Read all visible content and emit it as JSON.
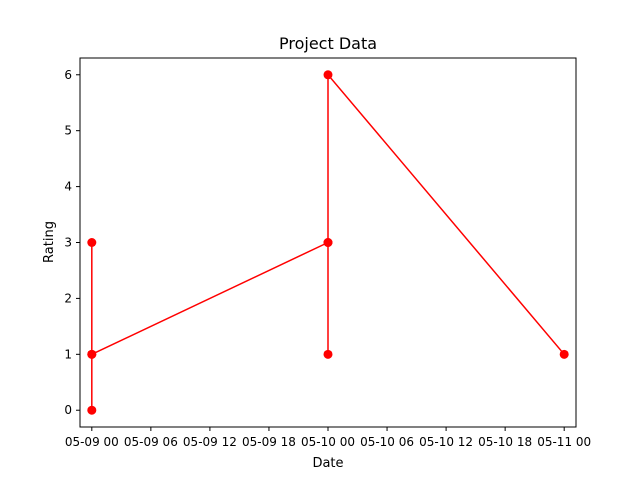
{
  "chart_data": {
    "type": "line",
    "title": "Project Data",
    "xlabel": "Date",
    "ylabel": "Rating",
    "x_axis_type": "date",
    "xlim": [
      "2023-05-08 22:48",
      "2023-05-11 01:12"
    ],
    "ylim": [
      -0.3,
      6.3
    ],
    "x_ticks": [
      {
        "value": "2023-05-09 00:00",
        "label": "05-09 00"
      },
      {
        "value": "2023-05-09 06:00",
        "label": "05-09 06"
      },
      {
        "value": "2023-05-09 12:00",
        "label": "05-09 12"
      },
      {
        "value": "2023-05-09 18:00",
        "label": "05-09 18"
      },
      {
        "value": "2023-05-10 00:00",
        "label": "05-10 00"
      },
      {
        "value": "2023-05-10 06:00",
        "label": "05-10 06"
      },
      {
        "value": "2023-05-10 12:00",
        "label": "05-10 12"
      },
      {
        "value": "2023-05-10 18:00",
        "label": "05-10 18"
      },
      {
        "value": "2023-05-11 00:00",
        "label": "05-11 00"
      }
    ],
    "y_ticks": [
      {
        "value": 0,
        "label": "0"
      },
      {
        "value": 1,
        "label": "1"
      },
      {
        "value": 2,
        "label": "2"
      },
      {
        "value": 3,
        "label": "3"
      },
      {
        "value": 4,
        "label": "4"
      },
      {
        "value": 5,
        "label": "5"
      },
      {
        "value": 6,
        "label": "6"
      }
    ],
    "grid": false,
    "series": [
      {
        "color": "#ff0000",
        "marker": "circle",
        "points": [
          {
            "x": "2023-05-09 00:00",
            "y": 0
          },
          {
            "x": "2023-05-09 00:00",
            "y": 1
          },
          {
            "x": "2023-05-09 00:00",
            "y": 3
          },
          {
            "x": "2023-05-09 00:00",
            "y": 1
          },
          {
            "x": "2023-05-10 00:00",
            "y": 3
          },
          {
            "x": "2023-05-10 00:00",
            "y": 1
          },
          {
            "x": "2023-05-10 00:00",
            "y": 3
          },
          {
            "x": "2023-05-10 00:00",
            "y": 6
          },
          {
            "x": "2023-05-11 00:00",
            "y": 1
          }
        ]
      }
    ]
  }
}
